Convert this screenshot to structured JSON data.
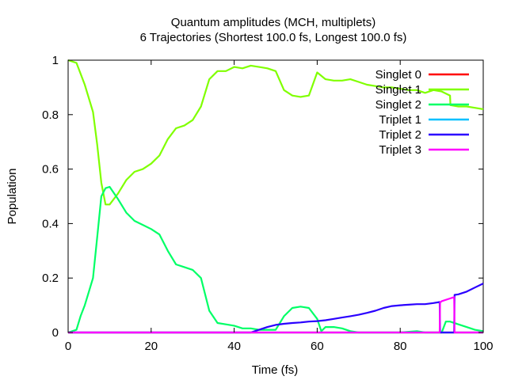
{
  "chart_data": {
    "type": "line",
    "title": "Quantum amplitudes (MCH, multiplets)",
    "subtitle": "6 Trajectories (Shortest 100.0 fs, Longest 100.0 fs)",
    "xlabel": "Time (fs)",
    "ylabel": "Population",
    "xlim": [
      0,
      100
    ],
    "ylim": [
      0,
      1
    ],
    "xticks": [
      "0",
      "20",
      "40",
      "60",
      "80",
      "100"
    ],
    "yticks": [
      "0",
      "0.2",
      "0.4",
      "0.6",
      "0.8",
      "1"
    ],
    "legend_position": "top-right",
    "grid": false,
    "series": [
      {
        "name": "Singlet 0",
        "color": "#ff0000",
        "points": [
          [
            0,
            0
          ],
          [
            100,
            0
          ]
        ]
      },
      {
        "name": "Singlet 1",
        "color": "#80ff00",
        "points": [
          [
            0,
            1.0
          ],
          [
            2,
            0.99
          ],
          [
            4,
            0.91
          ],
          [
            6,
            0.81
          ],
          [
            7,
            0.69
          ],
          [
            8,
            0.55
          ],
          [
            9,
            0.47
          ],
          [
            10,
            0.47
          ],
          [
            12,
            0.51
          ],
          [
            14,
            0.56
          ],
          [
            16,
            0.59
          ],
          [
            18,
            0.6
          ],
          [
            20,
            0.62
          ],
          [
            22,
            0.65
          ],
          [
            24,
            0.71
          ],
          [
            26,
            0.75
          ],
          [
            28,
            0.76
          ],
          [
            30,
            0.78
          ],
          [
            32,
            0.83
          ],
          [
            34,
            0.93
          ],
          [
            36,
            0.96
          ],
          [
            38,
            0.96
          ],
          [
            40,
            0.975
          ],
          [
            42,
            0.97
          ],
          [
            44,
            0.98
          ],
          [
            46,
            0.975
          ],
          [
            48,
            0.97
          ],
          [
            50,
            0.96
          ],
          [
            52,
            0.89
          ],
          [
            54,
            0.87
          ],
          [
            56,
            0.865
          ],
          [
            58,
            0.87
          ],
          [
            60,
            0.955
          ],
          [
            62,
            0.93
          ],
          [
            64,
            0.925
          ],
          [
            66,
            0.925
          ],
          [
            68,
            0.93
          ],
          [
            70,
            0.92
          ],
          [
            72,
            0.91
          ],
          [
            74,
            0.905
          ],
          [
            76,
            0.9
          ],
          [
            78,
            0.9
          ],
          [
            80,
            0.895
          ],
          [
            82,
            0.89
          ],
          [
            84,
            0.89
          ],
          [
            86,
            0.88
          ],
          [
            88,
            0.89
          ],
          [
            90,
            0.885
          ],
          [
            92,
            0.87
          ],
          [
            92.1,
            0.835
          ],
          [
            94,
            0.83
          ],
          [
            96,
            0.83
          ],
          [
            98,
            0.825
          ],
          [
            100,
            0.82
          ]
        ]
      },
      {
        "name": "Singlet 2",
        "color": "#00ff66",
        "points": [
          [
            0,
            0
          ],
          [
            2,
            0.01
          ],
          [
            3,
            0.06
          ],
          [
            4,
            0.1
          ],
          [
            5,
            0.15
          ],
          [
            6,
            0.2
          ],
          [
            7,
            0.35
          ],
          [
            8,
            0.5
          ],
          [
            9,
            0.53
          ],
          [
            10,
            0.535
          ],
          [
            12,
            0.49
          ],
          [
            14,
            0.44
          ],
          [
            16,
            0.41
          ],
          [
            18,
            0.395
          ],
          [
            20,
            0.38
          ],
          [
            22,
            0.36
          ],
          [
            24,
            0.3
          ],
          [
            26,
            0.25
          ],
          [
            28,
            0.24
          ],
          [
            30,
            0.23
          ],
          [
            32,
            0.2
          ],
          [
            34,
            0.08
          ],
          [
            36,
            0.035
          ],
          [
            38,
            0.03
          ],
          [
            40,
            0.025
          ],
          [
            42,
            0.015
          ],
          [
            44,
            0.015
          ],
          [
            46,
            0.01
          ],
          [
            48,
            0.01
          ],
          [
            50,
            0.01
          ],
          [
            52,
            0.06
          ],
          [
            54,
            0.09
          ],
          [
            56,
            0.095
          ],
          [
            58,
            0.09
          ],
          [
            60,
            0.05
          ],
          [
            61,
            0.005
          ],
          [
            62,
            0.02
          ],
          [
            64,
            0.02
          ],
          [
            66,
            0.015
          ],
          [
            68,
            0.005
          ],
          [
            70,
            0
          ],
          [
            80,
            0
          ],
          [
            84,
            0.005
          ],
          [
            86,
            0
          ],
          [
            90,
            0
          ],
          [
            91,
            0.04
          ],
          [
            92,
            0.04
          ],
          [
            94,
            0.03
          ],
          [
            96,
            0.02
          ],
          [
            98,
            0.01
          ],
          [
            100,
            0.005
          ]
        ]
      },
      {
        "name": "Triplet 1",
        "color": "#00c0ff",
        "points": [
          [
            0,
            0
          ],
          [
            100,
            0
          ]
        ]
      },
      {
        "name": "Triplet 2",
        "color": "#2a00ff",
        "points": [
          [
            0,
            0
          ],
          [
            44,
            0
          ],
          [
            46,
            0.01
          ],
          [
            48,
            0.02
          ],
          [
            50,
            0.028
          ],
          [
            52,
            0.032
          ],
          [
            54,
            0.035
          ],
          [
            56,
            0.037
          ],
          [
            58,
            0.04
          ],
          [
            60,
            0.042
          ],
          [
            62,
            0.045
          ],
          [
            64,
            0.05
          ],
          [
            66,
            0.055
          ],
          [
            68,
            0.06
          ],
          [
            70,
            0.065
          ],
          [
            72,
            0.072
          ],
          [
            74,
            0.08
          ],
          [
            76,
            0.09
          ],
          [
            78,
            0.097
          ],
          [
            80,
            0.1
          ],
          [
            82,
            0.102
          ],
          [
            84,
            0.104
          ],
          [
            86,
            0.104
          ],
          [
            88,
            0.108
          ],
          [
            89.5,
            0.112
          ],
          [
            89.6,
            0
          ],
          [
            93,
            0
          ],
          [
            93.1,
            0.138
          ],
          [
            94,
            0.14
          ],
          [
            96,
            0.15
          ],
          [
            98,
            0.165
          ],
          [
            100,
            0.18
          ]
        ]
      },
      {
        "name": "Triplet 3",
        "color": "#ff00ff",
        "points": [
          [
            0,
            0
          ],
          [
            89.5,
            0
          ],
          [
            89.6,
            0.11
          ],
          [
            90,
            0.115
          ],
          [
            92,
            0.125
          ],
          [
            93,
            0.13
          ],
          [
            93.1,
            0
          ],
          [
            100,
            0
          ]
        ]
      }
    ]
  }
}
